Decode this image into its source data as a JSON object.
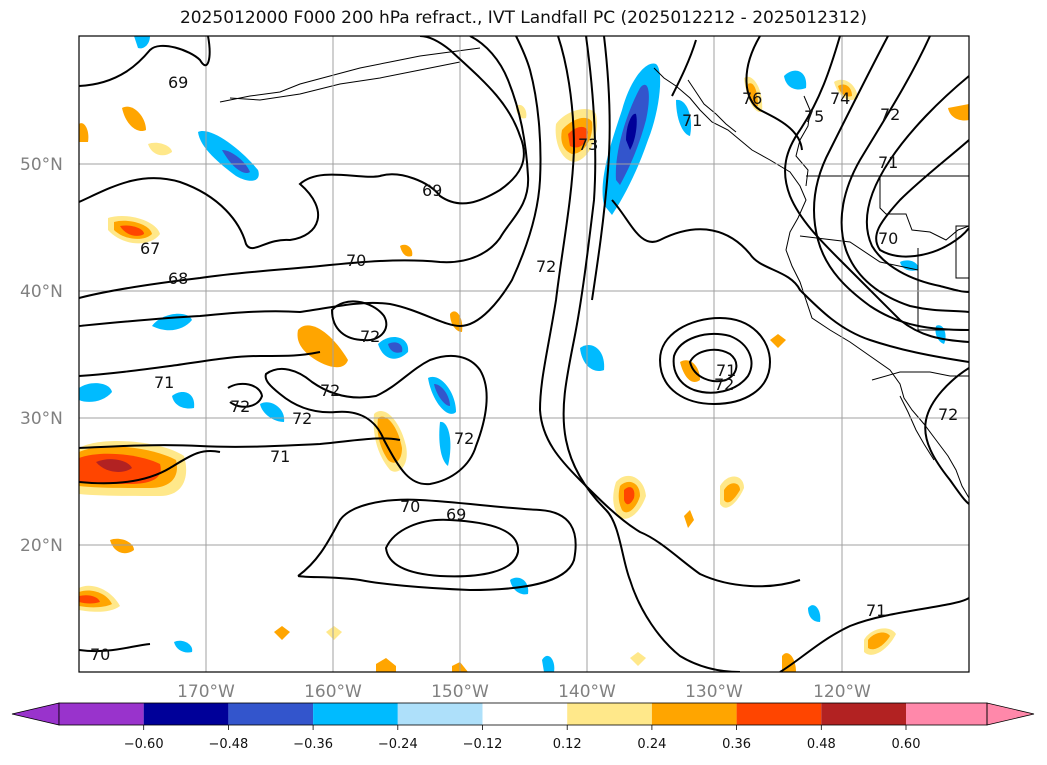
{
  "title": "2025012000 F000 200 hPa refract., IVT Landfall PC (2025012212 - 2025012312)",
  "axes": {
    "lat_labels": [
      "20°N",
      "30°N",
      "40°N",
      "50°N"
    ],
    "lon_labels": [
      "170°W",
      "160°W",
      "150°W",
      "140°W",
      "130°W",
      "120°W"
    ],
    "lat_range": [
      10,
      60
    ],
    "lon_range": [
      -180,
      -110
    ],
    "grid": true
  },
  "contours": {
    "color": "#000000",
    "labels": [
      "69",
      "69",
      "67",
      "68",
      "70",
      "72",
      "72",
      "71",
      "72",
      "72",
      "71",
      "72",
      "70",
      "69",
      "70",
      "72",
      "73",
      "76",
      "75",
      "74",
      "72",
      "71",
      "70",
      "71",
      "72",
      "71",
      "72",
      "71"
    ]
  },
  "colorbar": {
    "ticks": [
      "−0.60",
      "−0.48",
      "−0.36",
      "−0.24",
      "−0.12",
      "0.12",
      "0.24",
      "0.36",
      "0.48",
      "0.60"
    ],
    "colors": [
      "#9933cc",
      "#000099",
      "#3355cc",
      "#00bbff",
      "#aee0fa",
      "#ffffff",
      "#ffe88a",
      "#ffa500",
      "#ff4500",
      "#b22222",
      "#ff88aa"
    ]
  }
}
